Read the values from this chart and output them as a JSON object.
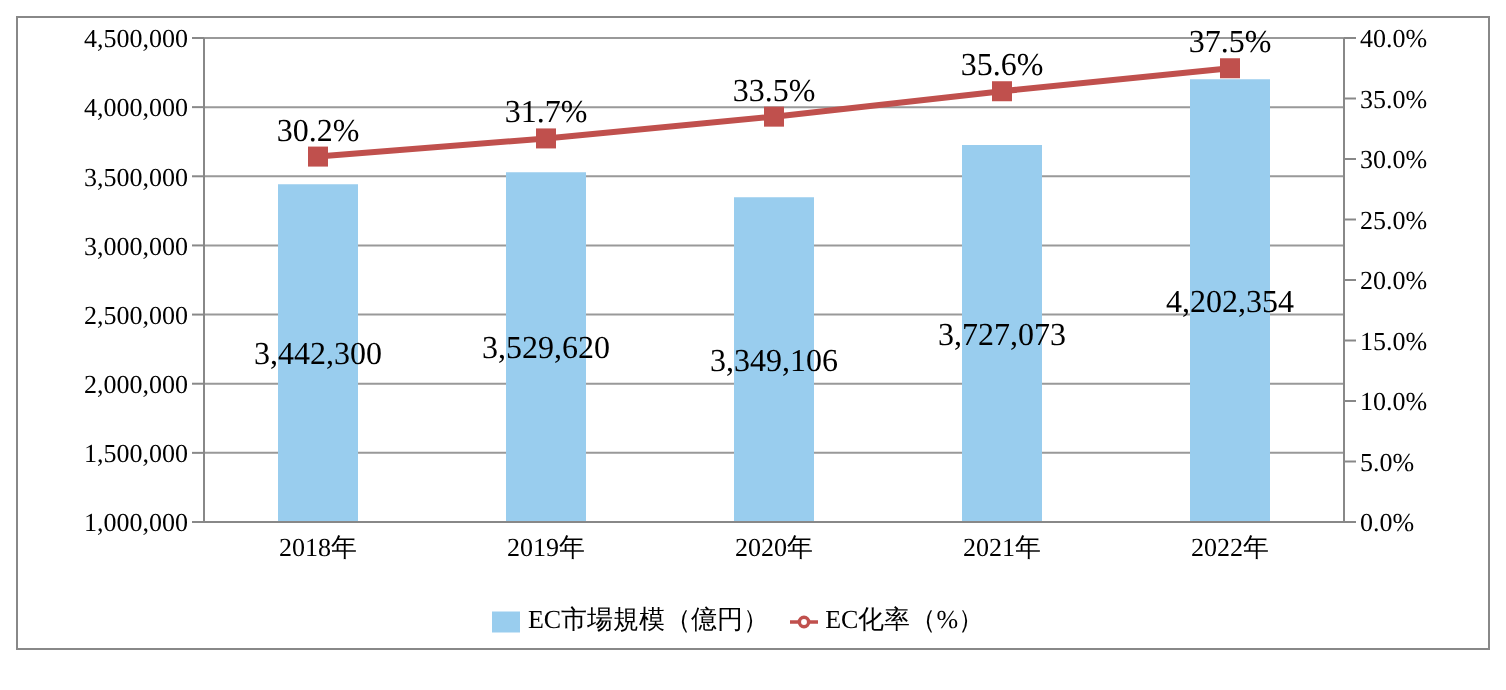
{
  "chart_data": {
    "type": "bar",
    "categories": [
      "2018年",
      "2019年",
      "2020年",
      "2021年",
      "2022年"
    ],
    "series": [
      {
        "name": "EC市場規模（億円）",
        "color": "#99cdee",
        "values": [
          3442300,
          3529620,
          3349106,
          3727073,
          4202354
        ],
        "value_labels": [
          "3,442,300",
          "3,529,620",
          "3,349,106",
          "3,727,073",
          "4,202,354"
        ]
      },
      {
        "name": "EC化率（%）",
        "type": "line",
        "axis": "y2",
        "color": "#c0504d",
        "values": [
          30.2,
          31.7,
          33.5,
          35.6,
          37.5
        ],
        "value_labels": [
          "30.2%",
          "31.7%",
          "33.5%",
          "35.6%",
          "37.5%"
        ]
      }
    ],
    "ylim": [
      1000000,
      4500000
    ],
    "yticks": [
      {
        "value": 1000000,
        "label": "1,000,000"
      },
      {
        "value": 1500000,
        "label": "1,500,000"
      },
      {
        "value": 2000000,
        "label": "2,000,000"
      },
      {
        "value": 2500000,
        "label": "2,500,000"
      },
      {
        "value": 3000000,
        "label": "3,000,000"
      },
      {
        "value": 3500000,
        "label": "3,500,000"
      },
      {
        "value": 4000000,
        "label": "4,000,000"
      },
      {
        "value": 4500000,
        "label": "4,500,000"
      }
    ],
    "y2lim": [
      0,
      40
    ],
    "y2ticks": [
      {
        "value": 0,
        "label": "0.0%"
      },
      {
        "value": 5,
        "label": "5.0%"
      },
      {
        "value": 10,
        "label": "10.0%"
      },
      {
        "value": 15,
        "label": "15.0%"
      },
      {
        "value": 20,
        "label": "20.0%"
      },
      {
        "value": 25,
        "label": "25.0%"
      },
      {
        "value": 30,
        "label": "30.0%"
      },
      {
        "value": 35,
        "label": "35.0%"
      },
      {
        "value": 40,
        "label": "40.0%"
      }
    ],
    "grid": "y",
    "legend": "bottom",
    "marker": "square",
    "line_style": "solid"
  }
}
